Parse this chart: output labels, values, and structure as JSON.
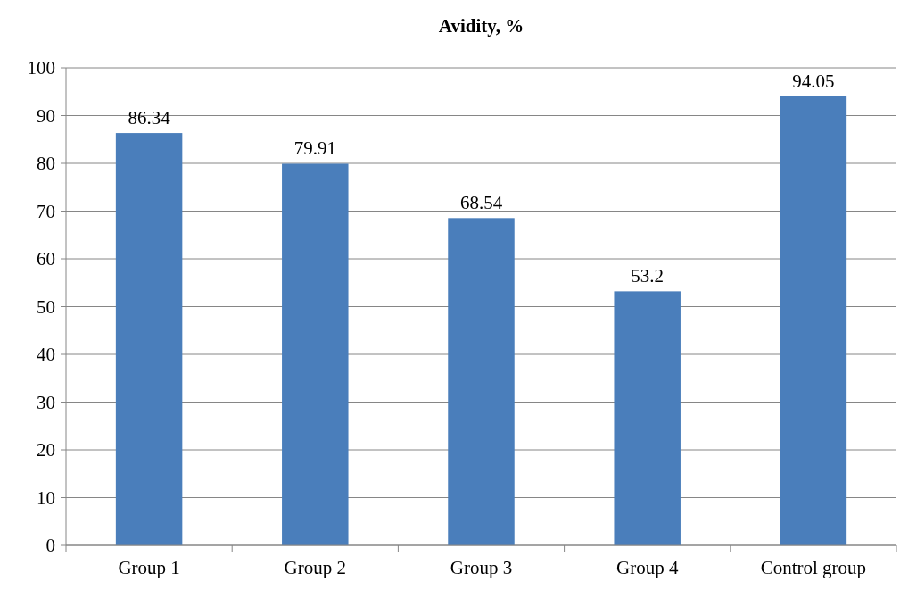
{
  "chart_data": {
    "type": "bar",
    "title": "Avidity, %",
    "categories": [
      "Group 1",
      "Group 2",
      "Group 3",
      "Group 4",
      "Control group"
    ],
    "values": [
      86.34,
      79.91,
      68.54,
      53.2,
      94.05
    ],
    "color": "#4a7ebb",
    "ylim": [
      0,
      100
    ],
    "yticks": [
      0,
      10,
      20,
      30,
      40,
      50,
      60,
      70,
      80,
      90,
      100
    ],
    "grid": "y",
    "data_labels": true
  }
}
